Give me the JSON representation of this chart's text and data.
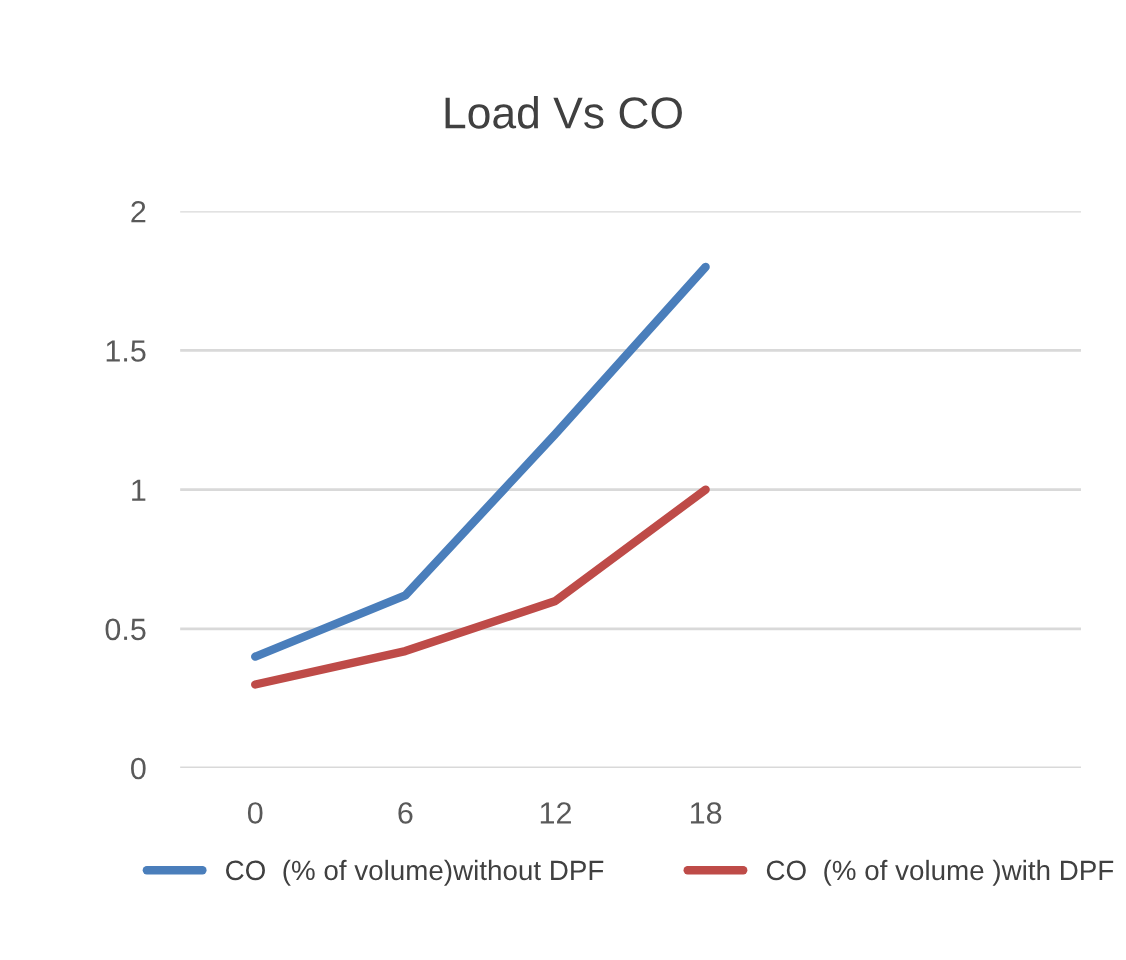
{
  "chart_data": {
    "type": "line",
    "title": "Load Vs CO",
    "categories": [
      "0",
      "6",
      "12",
      "18",
      null,
      null
    ],
    "series": [
      {
        "name": "CO  (% of volume)without DPF",
        "color": "#4a7ebb",
        "values": [
          0.4,
          0.62,
          1.2,
          1.8,
          null,
          null
        ]
      },
      {
        "name": "CO  (% of volume )with DPF",
        "color": "#be4b48",
        "values": [
          0.3,
          0.42,
          0.6,
          1.0,
          null,
          null
        ]
      }
    ],
    "ylim": [
      0,
      2
    ],
    "yticks": [
      0,
      0.5,
      1,
      1.5,
      2
    ],
    "grid": "y",
    "legend": "bottom",
    "line_style": "solid",
    "marker": "none"
  }
}
